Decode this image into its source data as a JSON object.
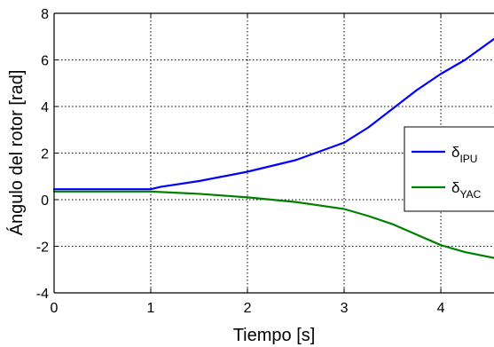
{
  "chart_data": {
    "type": "line",
    "title": "",
    "xlabel": "Tiempo [s]",
    "ylabel": "Ángulo del rotor [rad]",
    "xlim": [
      0,
      4.55
    ],
    "ylim": [
      -4,
      8
    ],
    "x_ticks": [
      "0",
      "1",
      "2",
      "3",
      "4"
    ],
    "y_ticks": [
      "-4",
      "-2",
      "0",
      "2",
      "4",
      "6",
      "8"
    ],
    "grid": true,
    "legend_position": "right",
    "series": [
      {
        "name": "δIPU",
        "legend_main": "δ",
        "legend_sub": "IPU",
        "color": "#0000ff",
        "x": [
          0,
          0.5,
          1.0,
          1.1,
          1.5,
          2.0,
          2.5,
          3.0,
          3.25,
          3.5,
          3.75,
          4.0,
          4.25,
          4.55
        ],
        "y": [
          0.45,
          0.45,
          0.45,
          0.55,
          0.8,
          1.2,
          1.7,
          2.45,
          3.1,
          3.9,
          4.7,
          5.4,
          6.0,
          6.9
        ]
      },
      {
        "name": "δYAC",
        "legend_main": "δ",
        "legend_sub": "YAC",
        "color": "#008000",
        "x": [
          0,
          0.5,
          1.0,
          1.25,
          1.5,
          2.0,
          2.25,
          2.5,
          2.75,
          3.0,
          3.25,
          3.5,
          3.75,
          4.0,
          4.25,
          4.55
        ],
        "y": [
          0.35,
          0.35,
          0.35,
          0.3,
          0.25,
          0.1,
          0.0,
          -0.1,
          -0.25,
          -0.4,
          -0.7,
          -1.05,
          -1.5,
          -1.95,
          -2.25,
          -2.5
        ]
      }
    ]
  }
}
